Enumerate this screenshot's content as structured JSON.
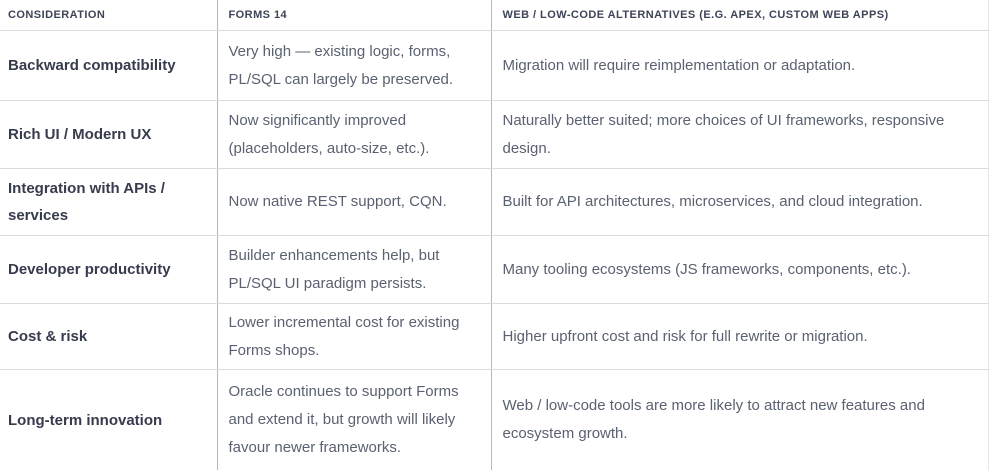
{
  "header": {
    "consideration": "CONSIDERATION",
    "forms14": "FORMS 14",
    "web_lowcode": "WEB / LOW-CODE ALTERNATIVES (E.G. APEX, CUSTOM WEB APPS)"
  },
  "rows": [
    {
      "consideration": "Backward compatibility",
      "forms14": "Very high — existing logic, forms, PL/SQL can largely be preserved.",
      "web_lowcode": "Migration will require reimplementation or adaptation."
    },
    {
      "consideration": "Rich UI / Modern UX",
      "forms14": "Now significantly improved (placeholders, auto-size, etc.).",
      "web_lowcode": "Naturally better suited; more choices of UI frameworks, responsive design."
    },
    {
      "consideration": "Integration with APIs / services",
      "forms14": "Now native REST support, CQN.",
      "web_lowcode": "Built for API architectures, microservices, and cloud integration."
    },
    {
      "consideration": "Developer productivity",
      "forms14": "Builder enhancements help, but PL/SQL UI paradigm persists.",
      "web_lowcode": "Many tooling ecosystems (JS frameworks, components, etc.)."
    },
    {
      "consideration": "Cost & risk",
      "forms14": "Lower incremental cost for existing Forms shops.",
      "web_lowcode": "Higher upfront cost and risk for full rewrite or migration."
    },
    {
      "consideration": "Long-term innovation",
      "forms14": "Oracle continues to support Forms and extend it, but growth will likely favour newer frameworks.",
      "web_lowcode": "Web / low-code tools are more likely to attract new features and ecosystem growth."
    }
  ],
  "colors": {
    "header_text": "#3d4456",
    "row_label_text": "#363b4d",
    "body_text": "#5a6170",
    "horizontal_border": "#d9dce1",
    "vertical_divider": "#a9bbc9",
    "outer_right_border": "#e3e6ea",
    "background": "#ffffff"
  }
}
